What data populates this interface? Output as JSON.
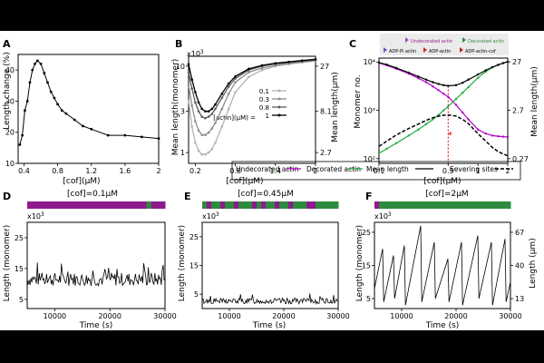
{
  "chart_data": [
    {
      "panel": "A",
      "type": "line",
      "xlabel": "[cof](μM)",
      "ylabel": "Length change (%)",
      "xlim": [
        0.33,
        2.0
      ],
      "ylim": [
        10,
        45
      ],
      "xticks": [
        "0.4",
        "0.8",
        "1.2",
        "1.6",
        "2"
      ],
      "yticks": [
        "10",
        "20",
        "30",
        "40"
      ],
      "series": [
        {
          "x": [
            0.35,
            0.38,
            0.41,
            0.44,
            0.47,
            0.5,
            0.53,
            0.56,
            0.6,
            0.64,
            0.68,
            0.72,
            0.76,
            0.8,
            0.85,
            0.9,
            1.0,
            1.1,
            1.2,
            1.4,
            1.6,
            1.8,
            2.0
          ],
          "y": [
            16,
            19,
            27,
            30,
            36,
            40,
            42,
            43,
            42,
            39,
            36,
            33,
            31,
            29,
            27,
            26,
            24,
            22,
            21,
            19,
            19,
            18.5,
            18
          ]
        }
      ]
    },
    {
      "panel": "B",
      "type": "line",
      "xlabel": "[cof](μM)",
      "ylabel": "Mean length(monomer)",
      "ylabel_right": "Mean length(μm)",
      "exponent": "x10",
      "exponent_power": "3",
      "y_scale": "log",
      "xlim": [
        0.1,
        2.0
      ],
      "ylim": [
        0.75,
        13
      ],
      "xticks": [
        "0.2",
        "0.8",
        "1.4",
        "2"
      ],
      "yticks": [
        "1",
        "3",
        "10"
      ],
      "yticks_right": [
        "2.7",
        "8.1",
        "27"
      ],
      "legend_title": "[actin](μM) =",
      "legend_position": "center-right",
      "series": [
        {
          "name": "0.1",
          "color": "#b3b3b3",
          "x": [
            0.1,
            0.15,
            0.2,
            0.25,
            0.3,
            0.35,
            0.4,
            0.45,
            0.5,
            0.6,
            0.7,
            0.8,
            1.0,
            1.2,
            1.4,
            1.6,
            1.8,
            2.0
          ],
          "y": [
            4.0,
            2.0,
            1.3,
            1.05,
            0.95,
            0.95,
            1.0,
            1.1,
            1.3,
            2.0,
            3.2,
            5.0,
            7.5,
            9.0,
            10,
            10.5,
            11,
            11.5
          ]
        },
        {
          "name": "0.3",
          "color": "#8c8c8c",
          "x": [
            0.1,
            0.15,
            0.2,
            0.25,
            0.3,
            0.35,
            0.4,
            0.45,
            0.5,
            0.6,
            0.7,
            0.8,
            1.0,
            1.2,
            1.4,
            1.6,
            1.8,
            2.0
          ],
          "y": [
            6.0,
            3.5,
            2.3,
            1.8,
            1.6,
            1.6,
            1.7,
            1.9,
            2.2,
            3.2,
            4.8,
            6.5,
            8.5,
            9.5,
            10.2,
            10.8,
            11.2,
            11.6
          ]
        },
        {
          "name": "0.8",
          "color": "#5e5e5e",
          "x": [
            0.1,
            0.15,
            0.2,
            0.25,
            0.3,
            0.35,
            0.4,
            0.45,
            0.5,
            0.6,
            0.7,
            0.8,
            1.0,
            1.2,
            1.4,
            1.6,
            1.8,
            2.0
          ],
          "y": [
            8.5,
            5.5,
            3.8,
            3.0,
            2.6,
            2.5,
            2.6,
            2.8,
            3.2,
            4.3,
            5.8,
            7.2,
            9.0,
            10.0,
            10.6,
            11.0,
            11.4,
            11.8
          ]
        },
        {
          "name": "1",
          "color": "#000000",
          "x": [
            0.1,
            0.15,
            0.2,
            0.25,
            0.3,
            0.35,
            0.4,
            0.45,
            0.5,
            0.6,
            0.7,
            0.8,
            1.0,
            1.2,
            1.4,
            1.6,
            1.8,
            2.0
          ],
          "y": [
            10.5,
            7.0,
            5.0,
            3.8,
            3.2,
            3.0,
            3.0,
            3.2,
            3.6,
            4.8,
            6.3,
            7.6,
            9.3,
            10.2,
            10.8,
            11.2,
            11.6,
            12.0
          ]
        }
      ]
    },
    {
      "panel": "C",
      "type": "line",
      "xlabel": "[cof](μM)",
      "ylabel": "Monomer no.",
      "ylabel_right": "Mean length(μm)",
      "x_scale": "log",
      "y_scale": "log",
      "xlim": [
        0.1,
        2.0
      ],
      "ylim": [
        80,
        12000
      ],
      "xticks": [
        "0.1",
        "0.5",
        "1",
        "2"
      ],
      "yticks": [
        "10²",
        "10³",
        "10⁴"
      ],
      "yticks_right": [
        "0.27",
        "2.7",
        "27"
      ],
      "marker_x": 0.5,
      "marker_label": "*",
      "legend_top": [
        "Undecorated actin",
        "Decorated actin",
        "ADP-Pi actin",
        "ADP-actin",
        "ADP-actin-cof"
      ],
      "series": [
        {
          "name": "Undecorated actin",
          "color": "#b000c8",
          "x": [
            0.1,
            0.12,
            0.15,
            0.2,
            0.25,
            0.3,
            0.35,
            0.4,
            0.45,
            0.5,
            0.6,
            0.7,
            0.8,
            1.0,
            1.2,
            1.4,
            1.6,
            1.8,
            2.0
          ],
          "y": [
            9500,
            8500,
            7200,
            5700,
            4600,
            3800,
            3100,
            2600,
            2200,
            1900,
            1300,
            900,
            650,
            400,
            330,
            300,
            290,
            285,
            280
          ]
        },
        {
          "name": "Decorated actin",
          "color": "#22aa44",
          "x": [
            0.1,
            0.12,
            0.15,
            0.2,
            0.25,
            0.3,
            0.35,
            0.4,
            0.45,
            0.5,
            0.6,
            0.7,
            0.8,
            1.0,
            1.2,
            1.4,
            1.6,
            1.8,
            2.0
          ],
          "y": [
            130,
            160,
            210,
            300,
            400,
            520,
            650,
            800,
            1000,
            1200,
            1700,
            2300,
            3000,
            4700,
            6300,
            7700,
            8600,
            9400,
            10000
          ]
        },
        {
          "name": "Mean length",
          "color": "#000000",
          "x": [
            0.1,
            0.12,
            0.15,
            0.2,
            0.25,
            0.3,
            0.35,
            0.4,
            0.45,
            0.5,
            0.6,
            0.7,
            0.8,
            1.0,
            1.2,
            1.4,
            1.6,
            1.8,
            2.0
          ],
          "y": [
            9700,
            8800,
            7500,
            6000,
            5000,
            4300,
            3800,
            3500,
            3300,
            3200,
            3300,
            3700,
            4300,
            5500,
            6700,
            7800,
            8700,
            9500,
            10100
          ]
        },
        {
          "name": "Severing sites",
          "color": "#000000",
          "dashed": true,
          "x": [
            0.1,
            0.12,
            0.15,
            0.2,
            0.25,
            0.3,
            0.35,
            0.4,
            0.45,
            0.5,
            0.6,
            0.7,
            0.8,
            1.0,
            1.2,
            1.4,
            1.6,
            1.8,
            2.0
          ],
          "y": [
            180,
            230,
            310,
            420,
            520,
            620,
            700,
            760,
            790,
            800,
            760,
            650,
            530,
            330,
            230,
            170,
            140,
            125,
            115
          ]
        }
      ]
    },
    {
      "panel": "D",
      "type": "line",
      "title": "[cof]=0.1μM",
      "xlabel": "Time (s)",
      "ylabel": "Length (monomer)",
      "exponent": "x10",
      "exponent_power": "3",
      "xlim": [
        5000,
        30000
      ],
      "ylim": [
        2,
        30
      ],
      "xticks": [
        "10000",
        "20000",
        "30000"
      ],
      "yticks": [
        "5",
        "15",
        "25"
      ],
      "decoration_bar": [
        "#8e1a8e",
        "#8e1a8e",
        "#8e1a8e",
        "#8e1a8e",
        "#8e1a8e",
        "#8e1a8e",
        "#8e1a8e",
        "#8e1a8e",
        "#8e1a8e",
        "#8e1a8e",
        "#8e1a8e",
        "#8e1a8e",
        "#8e1a8e",
        "#8e1a8e",
        "#8e1a8e",
        "#8e1a8e",
        "#8e1a8e",
        "#8e1a8e",
        "#8e1a8e",
        "#8e1a8e",
        "#8e1a8e",
        "#8e1a8e",
        "#8e1a8e",
        "#8e1a8e",
        "#8e1a8e",
        "#8e1a8e",
        "#2e8b3d",
        "#8e1a8e",
        "#8e1a8e",
        "#8e1a8e"
      ],
      "trace": {
        "base": 11.5,
        "noise": 2.2,
        "seed": 7,
        "teeth": 0
      }
    },
    {
      "panel": "E",
      "type": "line",
      "title": "[cof]=0.45μM",
      "xlabel": "Time (s)",
      "ylabel": "Length (monomer)",
      "exponent": "x10",
      "exponent_power": "3",
      "xlim": [
        5000,
        30000
      ],
      "ylim": [
        0,
        30
      ],
      "xticks": [
        "10000",
        "20000",
        "30000"
      ],
      "yticks": [
        "5",
        "15",
        "25"
      ],
      "decoration_bar": [
        "#2e8b3d",
        "#8e1a8e",
        "#2e8b3d",
        "#2e8b3d",
        "#8e1a8e",
        "#2e8b3d",
        "#2e8b3d",
        "#8e1a8e",
        "#2e8b3d",
        "#2e8b3d",
        "#2e8b3d",
        "#8e1a8e",
        "#2e8b3d",
        "#8e1a8e",
        "#2e8b3d",
        "#2e8b3d",
        "#8e1a8e",
        "#2e8b3d",
        "#2e8b3d",
        "#8e1a8e",
        "#2e8b3d",
        "#2e8b3d",
        "#2e8b3d",
        "#8e1a8e",
        "#8e1a8e",
        "#2e8b3d",
        "#2e8b3d",
        "#2e8b3d",
        "#2e8b3d",
        "#2e8b3d"
      ],
      "trace": {
        "base": 2.6,
        "noise": 1.0,
        "seed": 13,
        "teeth": 0
      }
    },
    {
      "panel": "F",
      "type": "line",
      "title": "[cof]=2μM",
      "xlabel": "Time (s)",
      "ylabel": "Length (monomer)",
      "ylabel_right": "Length (μm)",
      "exponent": "x10",
      "exponent_power": "3",
      "xlim": [
        5000,
        30000
      ],
      "ylim": [
        2,
        28
      ],
      "xticks": [
        "10000",
        "20000",
        "30000"
      ],
      "yticks": [
        "5",
        "15",
        "25"
      ],
      "yticks_right": [
        "13",
        "40",
        "67"
      ],
      "decoration_bar": [
        "#8e1a8e",
        "#2e8b3d",
        "#2e8b3d",
        "#2e8b3d",
        "#2e8b3d",
        "#2e8b3d",
        "#2e8b3d",
        "#2e8b3d",
        "#2e8b3d",
        "#2e8b3d",
        "#2e8b3d",
        "#2e8b3d",
        "#2e8b3d",
        "#2e8b3d",
        "#2e8b3d",
        "#2e8b3d",
        "#2e8b3d",
        "#2e8b3d",
        "#2e8b3d",
        "#2e8b3d",
        "#2e8b3d",
        "#2e8b3d",
        "#2e8b3d",
        "#2e8b3d",
        "#2e8b3d",
        "#2e8b3d",
        "#2e8b3d",
        "#2e8b3d",
        "#2e8b3d",
        "#2e8b3d"
      ],
      "sawtooth": [
        [
          5000,
          8
        ],
        [
          6500,
          20
        ],
        [
          6700,
          4
        ],
        [
          8500,
          18
        ],
        [
          8700,
          5
        ],
        [
          10500,
          21
        ],
        [
          10700,
          3
        ],
        [
          13500,
          27
        ],
        [
          13700,
          4
        ],
        [
          16000,
          22
        ],
        [
          16200,
          5
        ],
        [
          18500,
          17
        ],
        [
          18700,
          4
        ],
        [
          21000,
          22
        ],
        [
          21200,
          3
        ],
        [
          24000,
          24
        ],
        [
          24200,
          5
        ],
        [
          26500,
          22
        ],
        [
          26700,
          3
        ],
        [
          29000,
          23
        ],
        [
          29200,
          4
        ],
        [
          30000,
          10
        ]
      ]
    }
  ],
  "legend_bottom": [
    {
      "label": "Undecorated actin",
      "color": "#b000c8"
    },
    {
      "label": "Decorated actin",
      "color": "#22aa44"
    },
    {
      "label": "Mean length",
      "color": "#000000"
    },
    {
      "label": "Severing sites",
      "color": "#000000"
    }
  ],
  "panel_letters": [
    "A",
    "B",
    "C",
    "D",
    "E",
    "F"
  ]
}
